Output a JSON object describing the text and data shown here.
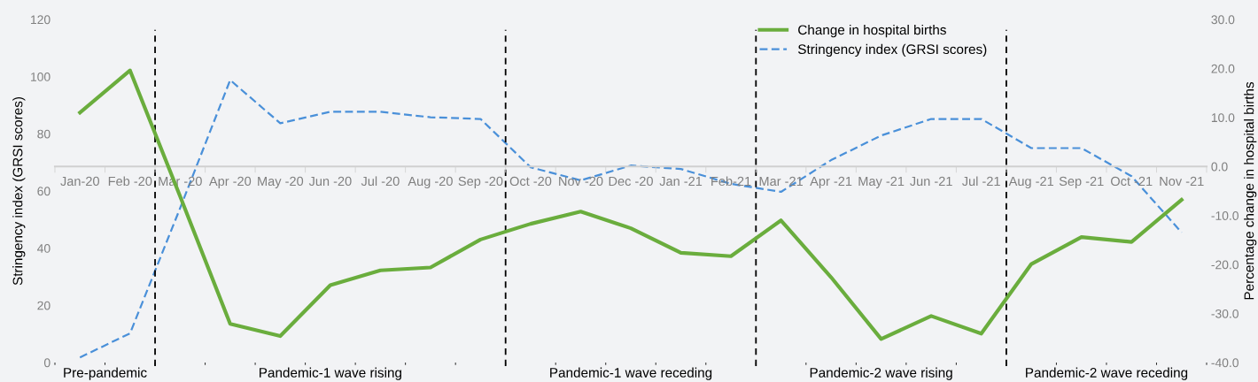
{
  "chart_data": {
    "type": "line",
    "categories": [
      "Jan-20",
      "Feb -20",
      "Mar -20",
      "Apr -20",
      "May -20",
      "Jun -20",
      "Jul -20",
      "Aug -20",
      "Sep -20",
      "Oct -20",
      "Nov -20",
      "Dec -20",
      "Jan -21",
      "Feb-21",
      "Mar -21",
      "Apr -21",
      "May -21",
      "Jun -21",
      "Jul -21",
      "Aug -21",
      "Sep -21",
      "Oct -21",
      "Nov -21"
    ],
    "series": [
      {
        "name": "Change in hospital births",
        "color": "#6aad3d",
        "axis": "y2",
        "line_style": "solid",
        "values": [
          11.0,
          19.6,
          -6.1,
          -32.1,
          -34.6,
          -24.2,
          -21.2,
          -20.6,
          -14.9,
          -11.7,
          -9.2,
          -12.6,
          -17.6,
          -18.3,
          -11.0,
          -22.6,
          -35.2,
          -30.5,
          -34.1,
          -19.9,
          -14.4,
          -15.4,
          -6.8
        ]
      },
      {
        "name": "Stringency index (GRSI scores)",
        "color": "#4a90d9",
        "axis": "y",
        "line_style": "dashed",
        "values": [
          1.8,
          10.2,
          54,
          98.8,
          83.7,
          87.7,
          87.7,
          85.8,
          85.2,
          68.3,
          63.7,
          68.9,
          67.7,
          62.5,
          59.7,
          70.8,
          79.4,
          85.2,
          85.2,
          75,
          75,
          65.2,
          45.5
        ]
      }
    ],
    "ylabel": "Stringency index (GRSI scores)",
    "y2label": "Percentage change in hospital births",
    "ylim": [
      0,
      120
    ],
    "yticks": [
      0,
      20,
      40,
      60,
      80,
      100,
      120
    ],
    "y2lim": [
      -40,
      30
    ],
    "y2ticks": [
      {
        "value": -40,
        "label": "-40.0"
      },
      {
        "value": -30,
        "label": "-30.0"
      },
      {
        "value": -20,
        "label": "-20.0"
      },
      {
        "value": -10,
        "label": "-10.0"
      },
      {
        "value": 0,
        "label": "0.0"
      },
      {
        "value": 10,
        "label": "10.0"
      },
      {
        "value": 20,
        "label": "20.0"
      },
      {
        "value": 30,
        "label": "30.0"
      }
    ],
    "annotations": [
      "Pre-pandemic",
      "Pandemic-1 wave rising",
      "Pandemic-1 wave receding",
      "Pandemic-2 wave rising",
      "Pandemic-2 wave receding"
    ],
    "legend": "top right",
    "grid": false,
    "marker": "none"
  }
}
